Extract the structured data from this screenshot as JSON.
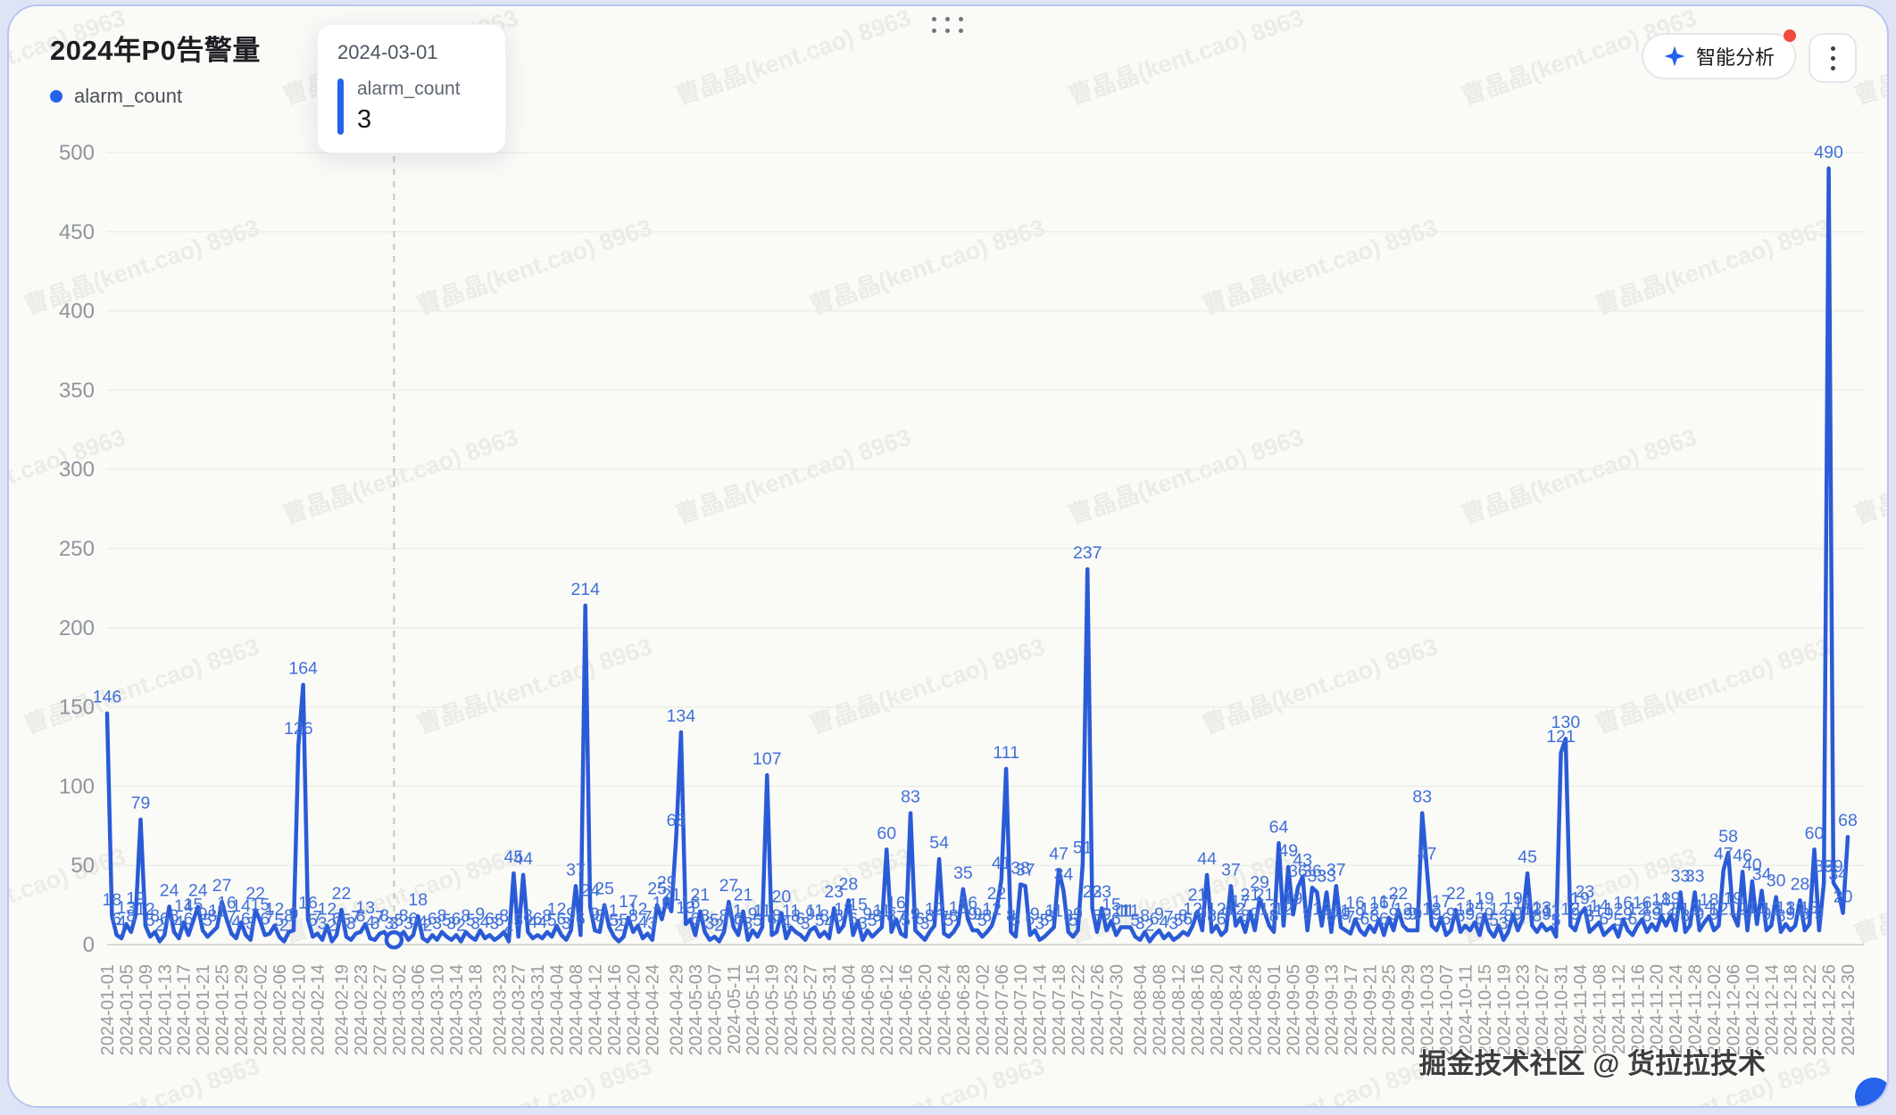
{
  "header": {
    "title": "2024年P0告警量",
    "legend": {
      "label": "alarm_count",
      "color": "#2563eb"
    }
  },
  "toolbar": {
    "ai_button_label": "智能分析",
    "has_notification_dot": true
  },
  "tooltip": {
    "date": "2024-03-01",
    "series": "alarm_count",
    "value": "3"
  },
  "watermark": {
    "text": "曹晶晶(kent.cao) 8963"
  },
  "credit": "掘金技术社区 @ 货拉拉技术",
  "chart_data": {
    "type": "line",
    "title": "2024年P0告警量",
    "series_name": "alarm_count",
    "start_date": "2024-01-01",
    "end_date": "2024-12-30",
    "ylim": [
      0,
      500
    ],
    "y_ticks": [
      0,
      50,
      100,
      150,
      200,
      250,
      300,
      350,
      400,
      450,
      500
    ],
    "grid": true,
    "legend_position": "top-left",
    "line_color": "#2a5bd7",
    "label_color": "#4070d9",
    "axis_label_color": "#999b9e",
    "highlight": {
      "date": "2024-03-01",
      "value": 3
    },
    "x_tick_labels": [
      "2024-01-01",
      "2024-01-05",
      "2024-01-09",
      "2024-01-13",
      "2024-01-17",
      "2024-01-21",
      "2024-01-25",
      "2024-01-29",
      "2024-02-02",
      "2024-02-06",
      "2024-02-10",
      "2024-02-14",
      "2024-02-19",
      "2024-02-23",
      "2024-02-27",
      "2024-03-02",
      "2024-03-06",
      "2024-03-10",
      "2024-03-14",
      "2024-03-18",
      "2024-03-23",
      "2024-03-27",
      "2024-03-31",
      "2024-04-04",
      "2024-04-08",
      "2024-04-12",
      "2024-04-16",
      "2024-04-20",
      "2024-04-24",
      "2024-04-29",
      "2024-05-03",
      "2024-05-07",
      "2024-05-11",
      "2024-05-15",
      "2024-05-19",
      "2024-05-23",
      "2024-05-27",
      "2024-05-31",
      "2024-06-04",
      "2024-06-08",
      "2024-06-12",
      "2024-06-16",
      "2024-06-20",
      "2024-06-24",
      "2024-06-28",
      "2024-07-02",
      "2024-07-06",
      "2024-07-10",
      "2024-07-14",
      "2024-07-18",
      "2024-07-22",
      "2024-07-26",
      "2024-07-30",
      "2024-08-04",
      "2024-08-08",
      "2024-08-12",
      "2024-08-16",
      "2024-08-20",
      "2024-08-24",
      "2024-08-28",
      "2024-09-01",
      "2024-09-05",
      "2024-09-09",
      "2024-09-13",
      "2024-09-17",
      "2024-09-21",
      "2024-09-25",
      "2024-09-29",
      "2024-10-03",
      "2024-10-07",
      "2024-10-11",
      "2024-10-15",
      "2024-10-19",
      "2024-10-23",
      "2024-10-27",
      "2024-10-31",
      "2024-11-04",
      "2024-11-08",
      "2024-11-12",
      "2024-11-16",
      "2024-11-20",
      "2024-11-24",
      "2024-11-28",
      "2024-12-02",
      "2024-12-06",
      "2024-12-10",
      "2024-12-14",
      "2024-12-18",
      "2024-12-22",
      "2024-12-26",
      "2024-12-30"
    ],
    "values": [
      146,
      18,
      6,
      4,
      13,
      8,
      19,
      79,
      12,
      5,
      8,
      2,
      6,
      24,
      8,
      4,
      14,
      6,
      15,
      24,
      9,
      5,
      8,
      11,
      27,
      16,
      7,
      4,
      14,
      6,
      3,
      22,
      15,
      6,
      7,
      12,
      5,
      2,
      8,
      9,
      126,
      164,
      16,
      5,
      7,
      3,
      12,
      2,
      6,
      22,
      5,
      3,
      7,
      8,
      13,
      4,
      3,
      7,
      8,
      3,
      3,
      5,
      8,
      3,
      6,
      18,
      4,
      2,
      6,
      3,
      8,
      5,
      3,
      6,
      2,
      8,
      5,
      3,
      9,
      4,
      6,
      3,
      5,
      8,
      2,
      45,
      5,
      44,
      8,
      4,
      6,
      4,
      8,
      5,
      12,
      6,
      3,
      9,
      37,
      6,
      214,
      24,
      9,
      8,
      25,
      11,
      5,
      2,
      5,
      17,
      8,
      12,
      4,
      7,
      3,
      25,
      16,
      29,
      21,
      68,
      134,
      13,
      16,
      6,
      21,
      8,
      3,
      5,
      2,
      8,
      27,
      11,
      6,
      21,
      3,
      9,
      5,
      11,
      107,
      6,
      8,
      20,
      4,
      11,
      8,
      6,
      3,
      9,
      11,
      5,
      8,
      4,
      23,
      8,
      12,
      28,
      6,
      15,
      3,
      9,
      5,
      8,
      11,
      60,
      8,
      16,
      7,
      5,
      83,
      9,
      6,
      3,
      8,
      12,
      54,
      7,
      5,
      8,
      13,
      35,
      16,
      9,
      9,
      5,
      8,
      12,
      22,
      41,
      111,
      8,
      5,
      38,
      37,
      6,
      9,
      3,
      5,
      8,
      11,
      47,
      34,
      8,
      5,
      9,
      51,
      237,
      23,
      8,
      23,
      9,
      15,
      6,
      11,
      11,
      11,
      5,
      3,
      8,
      2,
      6,
      9,
      4,
      7,
      3,
      5,
      8,
      6,
      12,
      21,
      9,
      44,
      8,
      12,
      6,
      9,
      37,
      12,
      17,
      8,
      21,
      9,
      29,
      21,
      12,
      8,
      64,
      12,
      49,
      19,
      36,
      43,
      9,
      36,
      33,
      12,
      33,
      8,
      37,
      11,
      9,
      7,
      16,
      9,
      6,
      12,
      8,
      16,
      6,
      17,
      9,
      22,
      12,
      9,
      9,
      9,
      83,
      47,
      12,
      9,
      17,
      6,
      9,
      22,
      8,
      12,
      9,
      14,
      6,
      19,
      9,
      5,
      12,
      3,
      8,
      19,
      9,
      16,
      45,
      12,
      8,
      13,
      9,
      11,
      5,
      121,
      130,
      12,
      9,
      19,
      23,
      8,
      11,
      14,
      6,
      9,
      12,
      5,
      16,
      9,
      6,
      12,
      16,
      8,
      13,
      9,
      18,
      12,
      19,
      9,
      33,
      8,
      12,
      33,
      9,
      14,
      18,
      9,
      12,
      47,
      58,
      19,
      12,
      46,
      9,
      40,
      13,
      34,
      9,
      12,
      30,
      8,
      13,
      9,
      12,
      28,
      9,
      13,
      60,
      9,
      39,
      490,
      39,
      34,
      20,
      68
    ],
    "labeled_peaks": [
      {
        "date": "2024-01-01",
        "value": 146
      },
      {
        "date": "2024-01-08",
        "value": 79
      },
      {
        "date": "2024-02-10",
        "value": 126
      },
      {
        "date": "2024-02-11",
        "value": 164
      },
      {
        "date": "2024-03-01",
        "value": 3
      },
      {
        "date": "2024-03-26",
        "value": 45
      },
      {
        "date": "2024-03-28",
        "value": 44
      },
      {
        "date": "2024-04-10",
        "value": 214
      },
      {
        "date": "2024-04-29",
        "value": 68
      },
      {
        "date": "2024-04-30",
        "value": 134
      },
      {
        "date": "2024-05-18",
        "value": 107
      },
      {
        "date": "2024-06-12",
        "value": 60
      },
      {
        "date": "2024-06-17",
        "value": 83
      },
      {
        "date": "2024-06-23",
        "value": 54
      },
      {
        "date": "2024-07-07",
        "value": 111
      },
      {
        "date": "2024-07-24",
        "value": 237
      },
      {
        "date": "2024-08-18",
        "value": 44
      },
      {
        "date": "2024-08-23",
        "value": 37
      },
      {
        "date": "2024-09-02",
        "value": 64
      },
      {
        "date": "2024-09-04",
        "value": 49
      },
      {
        "date": "2024-10-02",
        "value": 83
      },
      {
        "date": "2024-10-24",
        "value": 45
      },
      {
        "date": "2024-10-31",
        "value": 121
      },
      {
        "date": "2024-11-01",
        "value": 130
      },
      {
        "date": "2024-11-28",
        "value": 33
      },
      {
        "date": "2024-12-04",
        "value": 47
      },
      {
        "date": "2024-12-05",
        "value": 58
      },
      {
        "date": "2024-12-08",
        "value": 46
      },
      {
        "date": "2024-12-23",
        "value": 60
      },
      {
        "date": "2024-12-26",
        "value": 490
      },
      {
        "date": "2024-12-30",
        "value": 68
      }
    ]
  }
}
